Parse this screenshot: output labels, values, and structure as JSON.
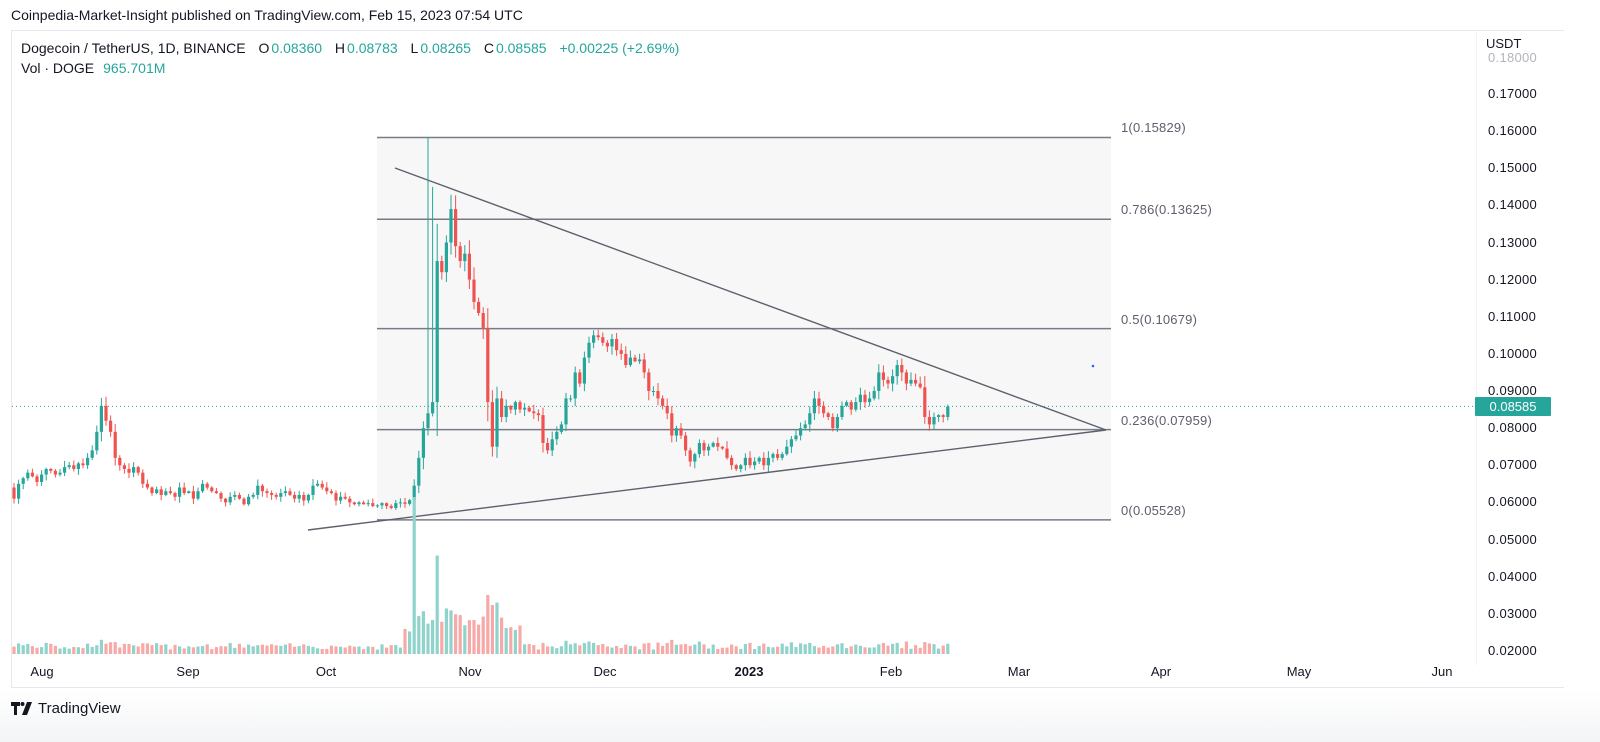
{
  "header": {
    "published": "Coinpedia-Market-Insight published on TradingView.com, Feb 15, 2023 07:54 UTC"
  },
  "legend": {
    "symbol": "Dogecoin / TetherUS, 1D, BINANCE",
    "o_label": "O",
    "o": "0.08360",
    "h_label": "H",
    "h": "0.08783",
    "l_label": "L",
    "l": "0.08265",
    "c_label": "C",
    "c": "0.08585",
    "change": "+0.00225 (+2.69%)",
    "vol_label": "Vol · DOGE",
    "vol": "965.701M"
  },
  "price_scale": {
    "unit": "USDT",
    "ticks": [
      "0.18000",
      "0.17000",
      "0.16000",
      "0.15000",
      "0.14000",
      "0.13000",
      "0.12000",
      "0.11000",
      "0.10000",
      "0.09000",
      "0.08000",
      "0.07000",
      "0.06000",
      "0.05000",
      "0.04000",
      "0.03000",
      "0.02000"
    ],
    "last_price": "0.08585"
  },
  "time_scale": {
    "labels": [
      "Aug",
      "Sep",
      "Oct",
      "Nov",
      "Dec",
      "2023",
      "Feb",
      "Mar",
      "Apr",
      "May",
      "Jun"
    ]
  },
  "fib_levels": [
    {
      "label": "1(0.15829)",
      "value": 0.15829
    },
    {
      "label": "0.786(0.13625)",
      "value": 0.13625
    },
    {
      "label": "0.5(0.10679)",
      "value": 0.10679
    },
    {
      "label": "0.236(0.07959)",
      "value": 0.07959
    },
    {
      "label": "0(0.05528)",
      "value": 0.05528
    }
  ],
  "footer": {
    "brand": "TradingView"
  },
  "colors": {
    "up": "#26a69a",
    "down": "#ef5350",
    "vol_up": "#8fd3cb",
    "vol_down": "#f7a9a7",
    "line": "#5d606b",
    "fib_bg": "#f7f7f8"
  },
  "chart_data": {
    "type": "candlestick",
    "title": "Dogecoin / TetherUS, 1D, BINANCE",
    "ylabel": "USDT",
    "ylim": [
      0.02,
      0.18
    ],
    "x_start": "2022-07-26",
    "x_end": "2023-02-15",
    "closes": [
      0.061,
      0.065,
      0.0665,
      0.068,
      0.067,
      0.0655,
      0.0675,
      0.069,
      0.0685,
      0.0675,
      0.068,
      0.0695,
      0.07,
      0.069,
      0.0705,
      0.07,
      0.072,
      0.074,
      0.079,
      0.086,
      0.082,
      0.079,
      0.072,
      0.07,
      0.069,
      0.068,
      0.0695,
      0.068,
      0.065,
      0.064,
      0.0625,
      0.0635,
      0.062,
      0.063,
      0.0625,
      0.0615,
      0.064,
      0.0625,
      0.063,
      0.061,
      0.063,
      0.065,
      0.064,
      0.063,
      0.0625,
      0.061,
      0.06,
      0.0615,
      0.062,
      0.061,
      0.0595,
      0.0615,
      0.062,
      0.0645,
      0.063,
      0.0625,
      0.062,
      0.0615,
      0.0625,
      0.063,
      0.062,
      0.061,
      0.062,
      0.0605,
      0.062,
      0.0645,
      0.065,
      0.064,
      0.063,
      0.0625,
      0.0605,
      0.0615,
      0.061,
      0.06,
      0.0595,
      0.06,
      0.0595,
      0.0598,
      0.059,
      0.0592,
      0.0598,
      0.059,
      0.0585,
      0.0598,
      0.06,
      0.0596,
      0.0606,
      0.0645,
      0.072,
      0.08,
      0.084,
      0.087,
      0.125,
      0.122,
      0.13,
      0.139,
      0.129,
      0.125,
      0.127,
      0.12,
      0.114,
      0.111,
      0.107,
      0.087,
      0.075,
      0.088,
      0.083,
      0.086,
      0.085,
      0.087,
      0.085,
      0.0855,
      0.0845,
      0.084,
      0.0835,
      0.076,
      0.074,
      0.077,
      0.079,
      0.081,
      0.088,
      0.088,
      0.095,
      0.092,
      0.099,
      0.103,
      0.105,
      0.1045,
      0.103,
      0.102,
      0.104,
      0.101,
      0.1,
      0.097,
      0.099,
      0.098,
      0.0985,
      0.095,
      0.09,
      0.09,
      0.088,
      0.086,
      0.084,
      0.078,
      0.08,
      0.078,
      0.074,
      0.071,
      0.073,
      0.076,
      0.074,
      0.075,
      0.076,
      0.075,
      0.0745,
      0.072,
      0.07,
      0.069,
      0.07,
      0.072,
      0.07,
      0.071,
      0.072,
      0.07,
      0.072,
      0.073,
      0.072,
      0.073,
      0.075,
      0.077,
      0.078,
      0.08,
      0.081,
      0.084,
      0.088,
      0.086,
      0.084,
      0.083,
      0.08,
      0.083,
      0.086,
      0.087,
      0.085,
      0.087,
      0.089,
      0.087,
      0.088,
      0.09,
      0.095,
      0.093,
      0.092,
      0.094,
      0.097,
      0.095,
      0.092,
      0.093,
      0.092,
      0.091,
      0.083,
      0.081,
      0.083,
      0.0835,
      0.083,
      0.0858
    ],
    "fib_retracement": {
      "top": 0.15829,
      "bottom": 0.05528,
      "levels": [
        1,
        0.786,
        0.5,
        0.236,
        0
      ]
    },
    "trendlines": [
      {
        "name": "descending-resistance",
        "from": [
          0.1505,
          "2022-10-14"
        ],
        "to": [
          0.0796,
          "2023-03-21"
        ]
      },
      {
        "name": "ascending-support",
        "from": [
          0.053,
          "2022-09-26"
        ],
        "to": [
          0.0796,
          "2023-03-21"
        ]
      }
    ],
    "last": {
      "open": 0.0836,
      "high": 0.08783,
      "low": 0.08265,
      "close": 0.08585,
      "volume": "965.701M"
    }
  }
}
